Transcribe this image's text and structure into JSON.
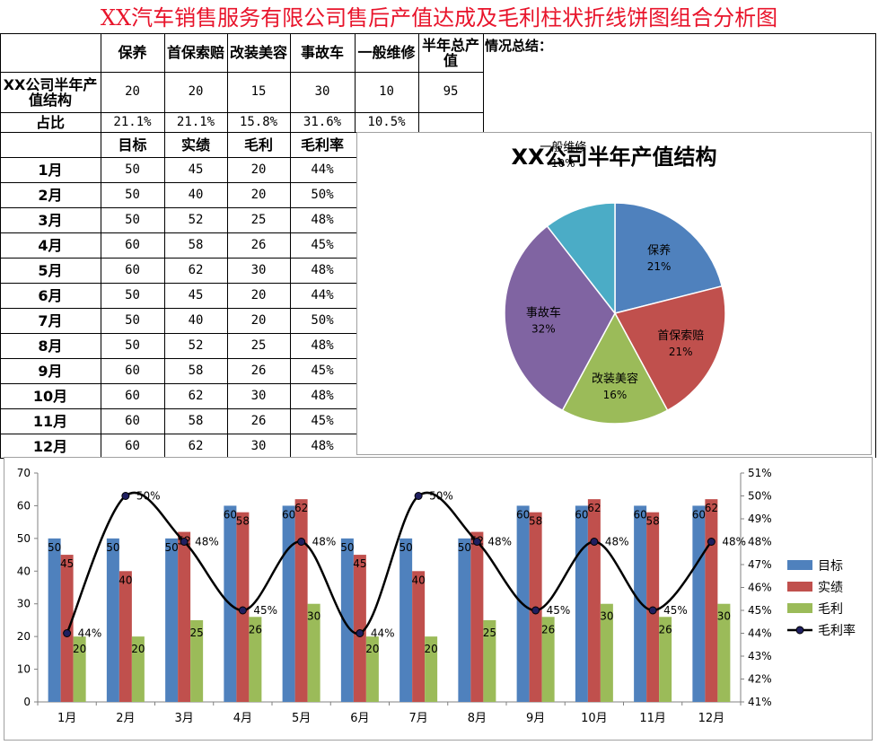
{
  "title": "XX汽车销售服务有限公司售后产值达成及毛利柱状折线饼图组合分析图",
  "summary_label": "情况总结：",
  "structure_table": {
    "headers": [
      "保养",
      "首保索赔",
      "改装美容",
      "事故车",
      "一般维修",
      "半年总产值"
    ],
    "row_label": "XX公司半年产值结构",
    "values": [
      "20",
      "20",
      "15",
      "30",
      "10",
      "95"
    ],
    "ratio_label": "占比",
    "ratios": [
      "21.1%",
      "21.1%",
      "15.8%",
      "31.6%",
      "10.5%"
    ]
  },
  "monthly_table": {
    "headers": [
      "目标",
      "实绩",
      "毛利",
      "毛利率"
    ],
    "rows": [
      {
        "month": "1月",
        "target": "50",
        "actual": "45",
        "profit": "20",
        "margin": "44%"
      },
      {
        "month": "2月",
        "target": "50",
        "actual": "40",
        "profit": "20",
        "margin": "50%"
      },
      {
        "month": "3月",
        "target": "50",
        "actual": "52",
        "profit": "25",
        "margin": "48%"
      },
      {
        "month": "4月",
        "target": "60",
        "actual": "58",
        "profit": "26",
        "margin": "45%"
      },
      {
        "month": "5月",
        "target": "60",
        "actual": "62",
        "profit": "30",
        "margin": "48%"
      },
      {
        "month": "6月",
        "target": "50",
        "actual": "45",
        "profit": "20",
        "margin": "44%"
      },
      {
        "month": "7月",
        "target": "50",
        "actual": "40",
        "profit": "20",
        "margin": "50%"
      },
      {
        "month": "8月",
        "target": "50",
        "actual": "52",
        "profit": "25",
        "margin": "48%"
      },
      {
        "month": "9月",
        "target": "60",
        "actual": "58",
        "profit": "26",
        "margin": "45%"
      },
      {
        "month": "10月",
        "target": "60",
        "actual": "62",
        "profit": "30",
        "margin": "48%"
      },
      {
        "month": "11月",
        "target": "60",
        "actual": "58",
        "profit": "26",
        "margin": "45%"
      },
      {
        "month": "12月",
        "target": "60",
        "actual": "62",
        "profit": "30",
        "margin": "48%"
      }
    ]
  },
  "chart_data": [
    {
      "type": "pie",
      "title": "XX公司半年产值结构",
      "slices": [
        {
          "label": "保养",
          "value": 20,
          "percent_label": "21%",
          "color": "#4f81bd"
        },
        {
          "label": "首保索赔",
          "value": 20,
          "percent_label": "21%",
          "color": "#c0504d"
        },
        {
          "label": "改装美容",
          "value": 15,
          "percent_label": "16%",
          "color": "#9bbb59"
        },
        {
          "label": "事故车",
          "value": 30,
          "percent_label": "32%",
          "color": "#8064a2"
        },
        {
          "label": "一般维修",
          "value": 10,
          "percent_label": "10%",
          "color": "#4bacc6"
        }
      ]
    },
    {
      "type": "bar",
      "categories": [
        "1月",
        "2月",
        "3月",
        "4月",
        "5月",
        "6月",
        "7月",
        "8月",
        "9月",
        "10月",
        "11月",
        "12月"
      ],
      "series": [
        {
          "name": "目标",
          "kind": "bar",
          "axis": "left",
          "color": "#4f81bd",
          "values": [
            50,
            50,
            50,
            60,
            60,
            50,
            50,
            50,
            60,
            60,
            60,
            60
          ]
        },
        {
          "name": "实绩",
          "kind": "bar",
          "axis": "left",
          "color": "#c0504d",
          "values": [
            45,
            40,
            52,
            58,
            62,
            45,
            40,
            52,
            58,
            62,
            58,
            62
          ]
        },
        {
          "name": "毛利",
          "kind": "bar",
          "axis": "left",
          "color": "#9bbb59",
          "values": [
            20,
            20,
            25,
            26,
            30,
            20,
            20,
            25,
            26,
            30,
            26,
            30
          ]
        },
        {
          "name": "毛利率",
          "kind": "line",
          "axis": "right",
          "color": "#000000",
          "values": [
            44,
            50,
            48,
            45,
            48,
            44,
            50,
            48,
            45,
            48,
            45,
            48
          ],
          "labels": [
            "44%",
            "50%",
            "48%",
            "45%",
            "48%",
            "44%",
            "50%",
            "48%",
            "45%",
            "48%",
            "45%",
            "48%"
          ]
        }
      ],
      "y_left": {
        "min": 0,
        "max": 70,
        "ticks": [
          "0",
          "10",
          "20",
          "30",
          "40",
          "50",
          "60",
          "70"
        ]
      },
      "y_right": {
        "min": 41,
        "max": 51,
        "ticks": [
          "41%",
          "42%",
          "43%",
          "44%",
          "45%",
          "46%",
          "47%",
          "48%",
          "49%",
          "50%",
          "51%"
        ]
      },
      "legend_position": "right",
      "grid": false
    }
  ]
}
